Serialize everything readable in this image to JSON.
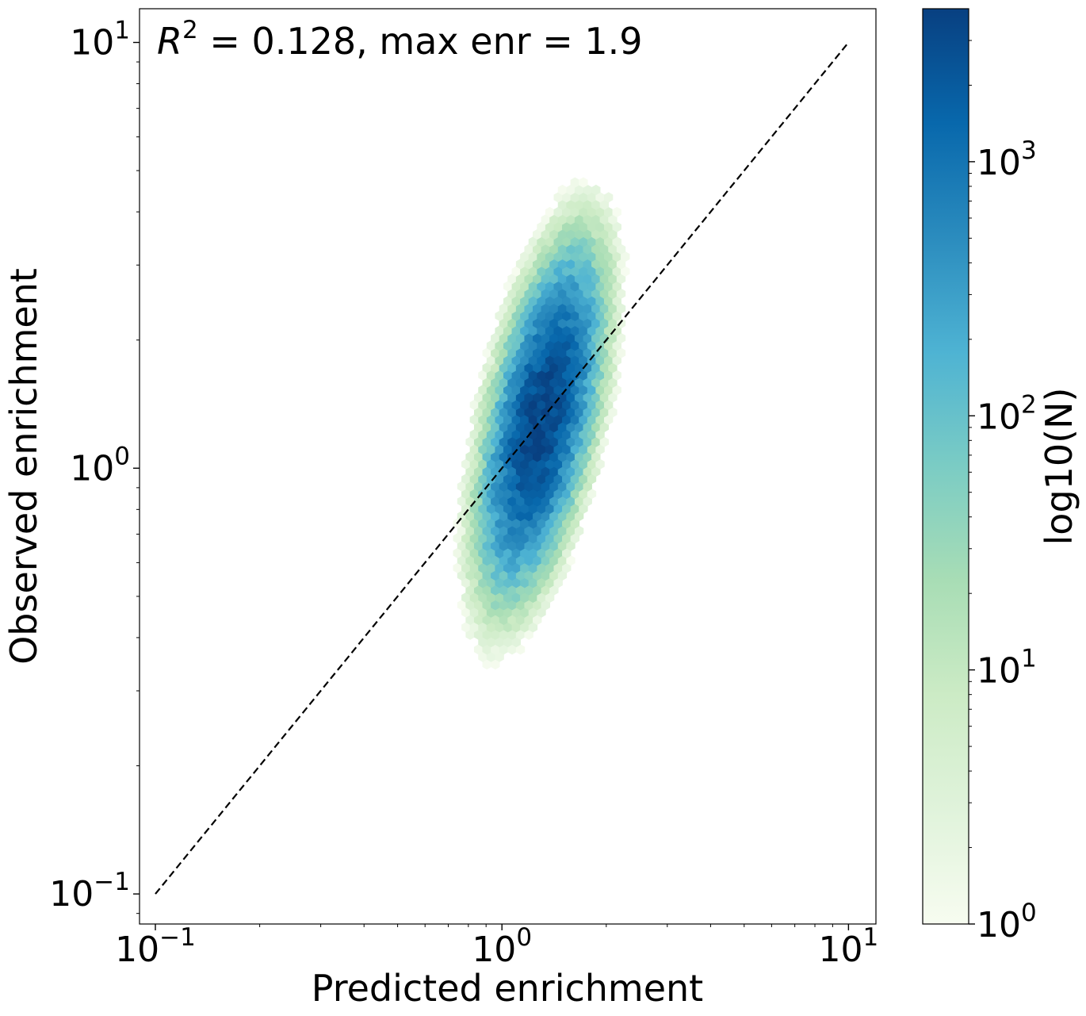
{
  "chart_data": {
    "type": "hexbin",
    "annotation": {
      "r2_symbol": "R",
      "r2_exp": "2",
      "text": " = 0.128, max enr = 1.9"
    },
    "xlabel": "Predicted enrichment",
    "ylabel": "Observed enrichment",
    "x_scale": "log",
    "y_scale": "log",
    "xlim": [
      0.09,
      12
    ],
    "ylim": [
      0.085,
      12
    ],
    "x_ticks": [
      {
        "value": 0.1,
        "base": "10",
        "exp": "−1"
      },
      {
        "value": 1,
        "base": "10",
        "exp": "0"
      },
      {
        "value": 10,
        "base": "10",
        "exp": "1"
      }
    ],
    "y_ticks": [
      {
        "value": 0.1,
        "base": "10",
        "exp": "−1"
      },
      {
        "value": 1,
        "base": "10",
        "exp": "0"
      },
      {
        "value": 10,
        "base": "10",
        "exp": "1"
      }
    ],
    "reference_line": {
      "style": "dashed",
      "color": "#000000",
      "from": [
        0.1,
        0.1
      ],
      "to": [
        10,
        10
      ]
    },
    "colorbar": {
      "label": "log10(N)",
      "scale": "log",
      "range": [
        1,
        4000
      ],
      "ticks": [
        {
          "value": 1,
          "base": "10",
          "exp": "0"
        },
        {
          "value": 10,
          "base": "10",
          "exp": "1"
        },
        {
          "value": 100,
          "base": "10",
          "exp": "2"
        },
        {
          "value": 1000,
          "base": "10",
          "exp": "3"
        }
      ],
      "colormap": "GnBu",
      "colors": [
        "#f7fcf0",
        "#e0f3db",
        "#ccebc5",
        "#a8ddb5",
        "#7bccc4",
        "#4eb3d3",
        "#2b8cbe",
        "#0868ac",
        "#084081"
      ]
    },
    "density": {
      "center_x": 1.3,
      "center_y": 1.3,
      "sigma_x": 0.06,
      "sigma_y": 0.14,
      "correlation": 0.55,
      "peak_count": 4000
    }
  }
}
